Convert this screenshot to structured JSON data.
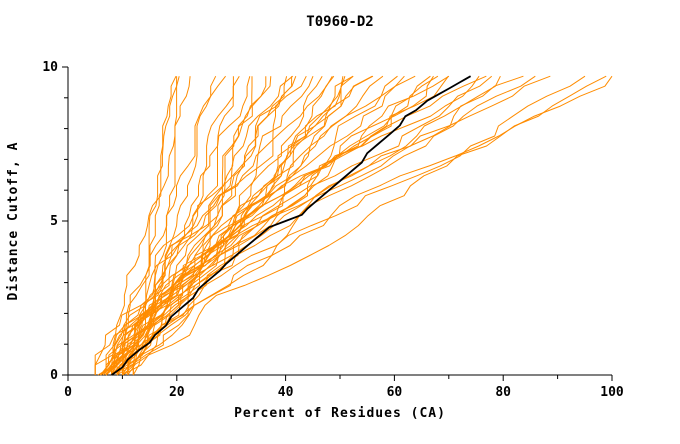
{
  "chart_data": {
    "type": "line",
    "title": "T0960-D2",
    "xlabel": "Percent of Residues (CA)",
    "ylabel": "Distance Cutoff, A",
    "xlim": [
      0,
      100
    ],
    "ylim": [
      0,
      10
    ],
    "grid": false,
    "legend": "none",
    "x_ticks": {
      "major": [
        0,
        20,
        40,
        60,
        80,
        100
      ],
      "minor": [
        10,
        30,
        50,
        70,
        90
      ]
    },
    "y_ticks": {
      "major": [
        0,
        5,
        10
      ],
      "minor": [
        1,
        2,
        3,
        4,
        6,
        7,
        8,
        9
      ]
    },
    "curve_top_cutoff": 9.7,
    "colors": {
      "model_curves": "#ff8c00",
      "highlight_curve": "#000000",
      "axis": "#000000",
      "background": "#ffffff"
    },
    "highlight_series": {
      "name": "highlighted-model",
      "points": [
        [
          8,
          0
        ],
        [
          10,
          0.25
        ],
        [
          11,
          0.5
        ],
        [
          13,
          0.8
        ],
        [
          15,
          1.05
        ],
        [
          16,
          1.3
        ],
        [
          18,
          1.6
        ],
        [
          19,
          1.9
        ],
        [
          21,
          2.2
        ],
        [
          23,
          2.5
        ],
        [
          24,
          2.8
        ],
        [
          26,
          3.1
        ],
        [
          28,
          3.4
        ],
        [
          29,
          3.6
        ],
        [
          31,
          3.9
        ],
        [
          33,
          4.2
        ],
        [
          35,
          4.5
        ],
        [
          37,
          4.8
        ],
        [
          40,
          5.0
        ],
        [
          43,
          5.2
        ],
        [
          44,
          5.4
        ],
        [
          46,
          5.7
        ],
        [
          48,
          6.0
        ],
        [
          50,
          6.3
        ],
        [
          52,
          6.6
        ],
        [
          54,
          6.9
        ],
        [
          55,
          7.2
        ],
        [
          57,
          7.5
        ],
        [
          59,
          7.8
        ],
        [
          61,
          8.1
        ],
        [
          62,
          8.4
        ],
        [
          64,
          8.6
        ],
        [
          66,
          8.9
        ],
        [
          68,
          9.1
        ],
        [
          70,
          9.3
        ],
        [
          72,
          9.5
        ],
        [
          73,
          9.6
        ],
        [
          74,
          9.7
        ]
      ]
    },
    "model_series_key": [
      "start_percent",
      "end_percent_at_top",
      "shape_exponent",
      "jitter",
      "seed"
    ],
    "model_series_params": [
      [
        5.5,
        19,
        0.5,
        2.0,
        1
      ],
      [
        6,
        21,
        0.55,
        2.2,
        2
      ],
      [
        6.5,
        23,
        0.6,
        2.4,
        3
      ],
      [
        7,
        25,
        0.6,
        2.0,
        4
      ],
      [
        7,
        27,
        0.65,
        2.5,
        5
      ],
      [
        8,
        29,
        0.7,
        2.5,
        6
      ],
      [
        8,
        31,
        0.7,
        3.0,
        7
      ],
      [
        9,
        33,
        0.75,
        3.0,
        8
      ],
      [
        9,
        34,
        0.8,
        2.8,
        9
      ],
      [
        10,
        36,
        0.8,
        3.0,
        10
      ],
      [
        6,
        38,
        0.85,
        3.0,
        11
      ],
      [
        7,
        39,
        0.85,
        3.2,
        12
      ],
      [
        8,
        41,
        0.9,
        3.0,
        13
      ],
      [
        9,
        42,
        0.9,
        3.5,
        14
      ],
      [
        10,
        44,
        0.95,
        3.0,
        15
      ],
      [
        11,
        45,
        0.95,
        3.2,
        16
      ],
      [
        5,
        47,
        1.0,
        3.5,
        17
      ],
      [
        6,
        48,
        1.0,
        3.0,
        18
      ],
      [
        7,
        50,
        1.0,
        3.5,
        19
      ],
      [
        8,
        51,
        1.05,
        3.0,
        20
      ],
      [
        9,
        53,
        1.05,
        3.5,
        21
      ],
      [
        10,
        54,
        1.1,
        3.0,
        22
      ],
      [
        11,
        56,
        1.1,
        3.5,
        23
      ],
      [
        12,
        57,
        1.1,
        3.0,
        24
      ],
      [
        5,
        59,
        1.15,
        3.5,
        25
      ],
      [
        6,
        60,
        1.15,
        3.0,
        26
      ],
      [
        7,
        62,
        1.2,
        3.5,
        27
      ],
      [
        8,
        63,
        1.2,
        3.0,
        28
      ],
      [
        9,
        65,
        1.2,
        4.0,
        29
      ],
      [
        10,
        66,
        1.25,
        3.5,
        30
      ],
      [
        11,
        68,
        1.25,
        4.0,
        31
      ],
      [
        12,
        70,
        1.3,
        3.5,
        32
      ],
      [
        5,
        72,
        1.3,
        4.0,
        33
      ],
      [
        6,
        74,
        1.3,
        3.5,
        34
      ],
      [
        7,
        76,
        1.35,
        4.0,
        35
      ],
      [
        8,
        78,
        1.35,
        3.5,
        36
      ],
      [
        9,
        80,
        1.35,
        4.0,
        37
      ],
      [
        10,
        83,
        1.4,
        4.0,
        38
      ],
      [
        11,
        86,
        1.3,
        4.0,
        39
      ],
      [
        12,
        88,
        1.25,
        4.0,
        40
      ],
      [
        8,
        92,
        1.2,
        4.0,
        41
      ],
      [
        9,
        96,
        1.15,
        4.0,
        42
      ],
      [
        10,
        100,
        1.1,
        4.0,
        43
      ],
      [
        6,
        20,
        0.45,
        2.0,
        44
      ],
      [
        7,
        35,
        0.7,
        4.5,
        45
      ],
      [
        8,
        55,
        1.0,
        4.5,
        46
      ]
    ]
  }
}
